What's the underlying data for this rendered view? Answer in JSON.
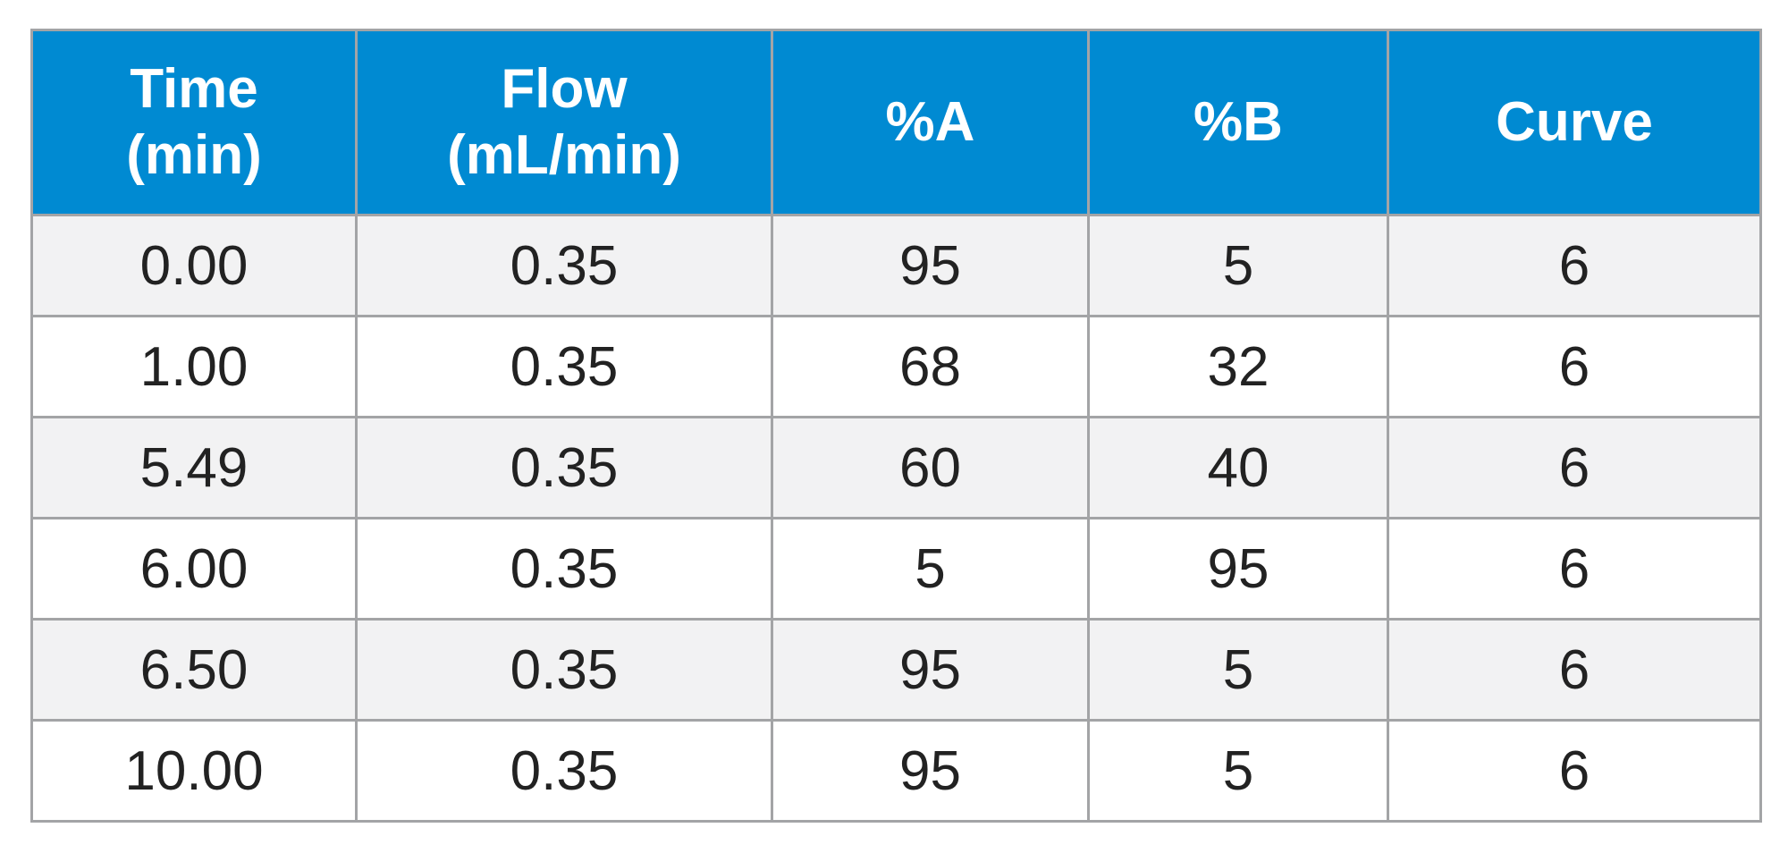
{
  "table": {
    "header": [
      "Time\n(min)",
      "Flow\n(mL/min)",
      "%A",
      "%B",
      "Curve"
    ],
    "rows": [
      [
        "0.00",
        "0.35",
        "95",
        "5",
        "6"
      ],
      [
        "1.00",
        "0.35",
        "68",
        "32",
        "6"
      ],
      [
        "5.49",
        "0.35",
        "60",
        "40",
        "6"
      ],
      [
        "6.00",
        "0.35",
        "5",
        "95",
        "6"
      ],
      [
        "6.50",
        "0.35",
        "95",
        "5",
        "6"
      ],
      [
        "10.00",
        "0.35",
        "95",
        "5",
        "6"
      ]
    ]
  }
}
